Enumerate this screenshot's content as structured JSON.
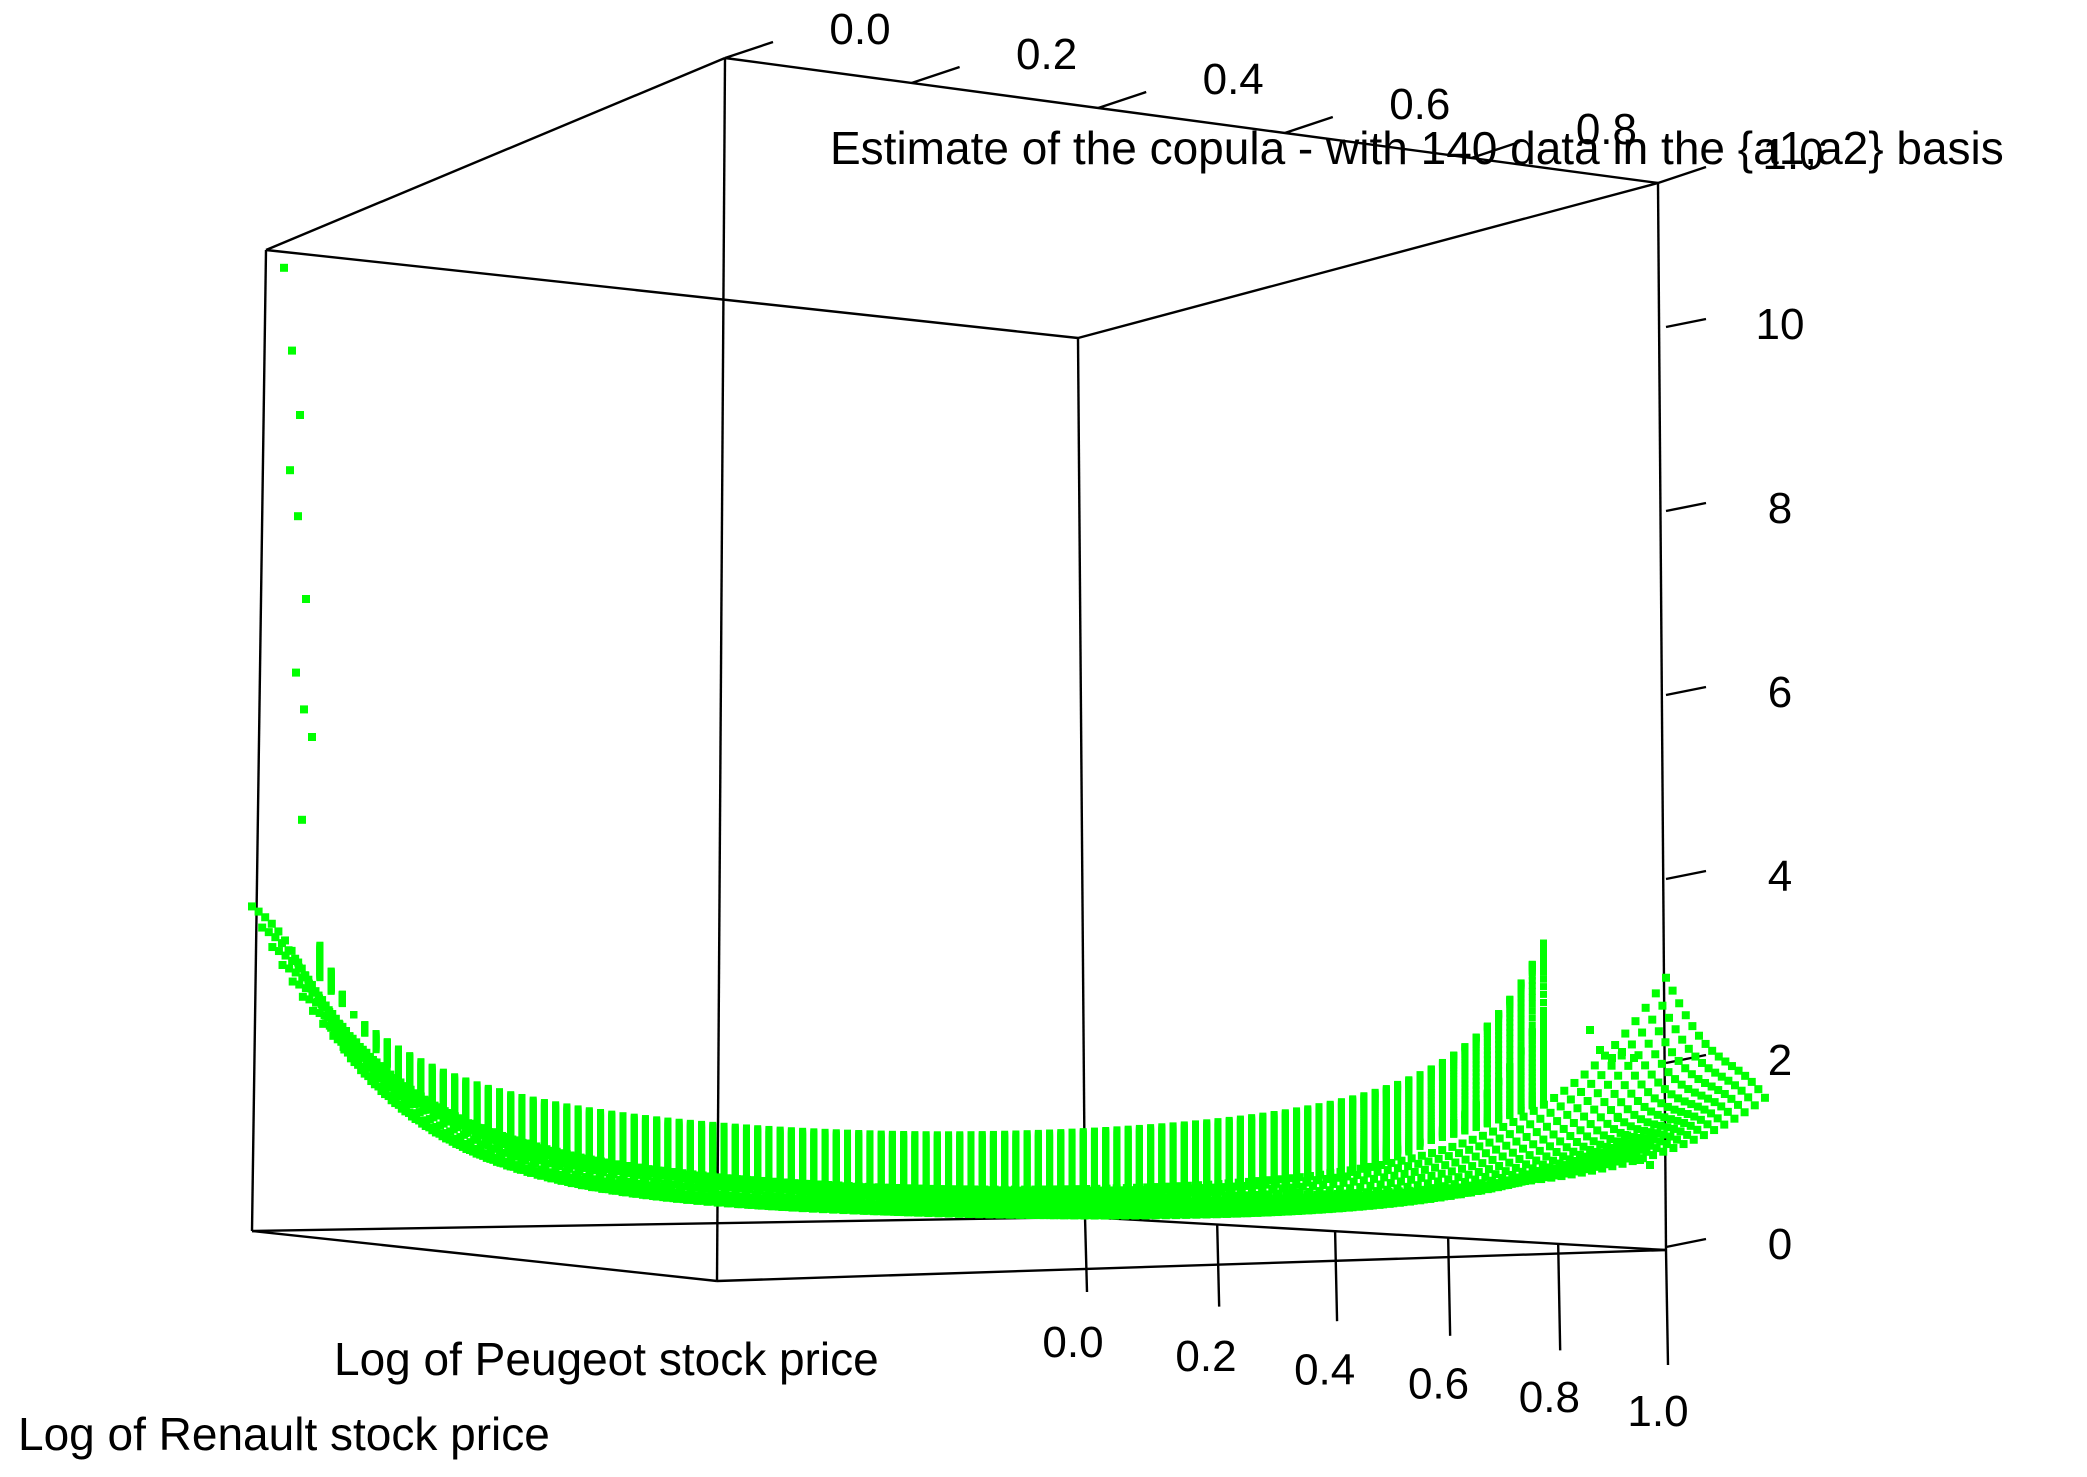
{
  "chart_data": {
    "type": "scatter",
    "projection": "3d",
    "title": "Estimate of the copula - with 140 data in the {a1,a2} basis",
    "xlabel": "Log of Peugeot stock price",
    "ylabel": "Log of Renault stock price",
    "zlabel": "",
    "xlim": [
      0,
      1
    ],
    "ylim": [
      0,
      1
    ],
    "zlim": [
      0,
      11
    ],
    "x_ticks": [
      "0.0",
      "0.2",
      "0.4",
      "0.6",
      "0.8",
      "1.0"
    ],
    "y_ticks": [
      "0.0",
      "0.2",
      "0.4",
      "0.6",
      "0.8",
      "1.0"
    ],
    "z_ticks": [
      "0",
      "2",
      "4",
      "6",
      "8",
      "10"
    ],
    "point_color": "#00ff00",
    "box_color": "#000000",
    "surface": {
      "description_values": "estimated copula density over a 140-point grid in (u,v) in [0,1]^2",
      "corner_u0v0": 10.6,
      "corner_u1v1": 3.4,
      "baseline": 0.8,
      "edge_spike_points_z": [
        10.6,
        9.7,
        9.0,
        8.4,
        7.9,
        7.0,
        6.2,
        5.8,
        5.5,
        4.6
      ]
    }
  }
}
